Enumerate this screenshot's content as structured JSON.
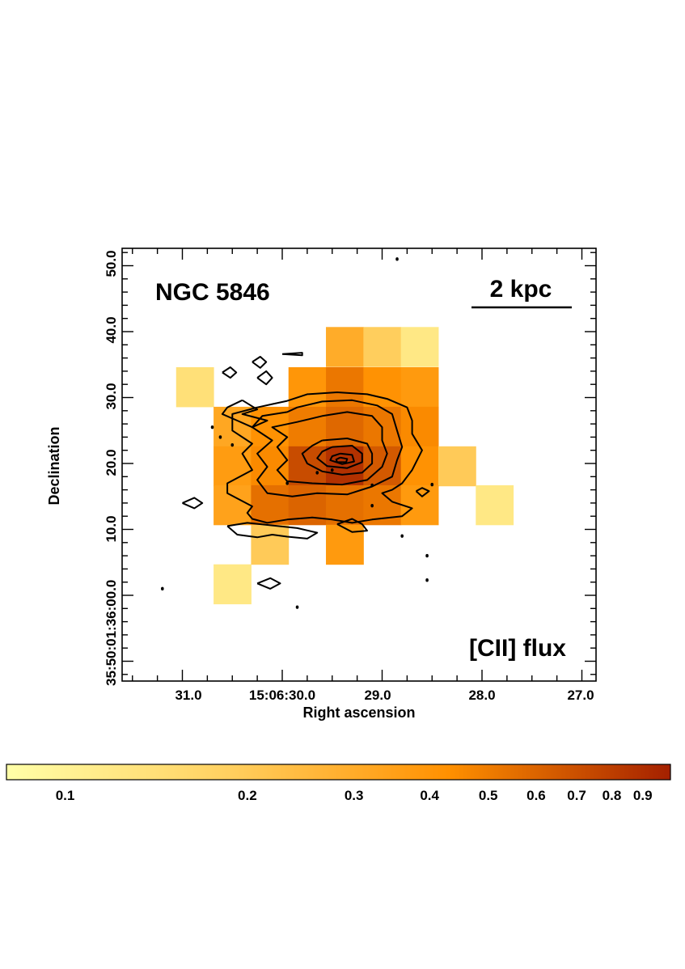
{
  "chart_data": {
    "type": "heatmap",
    "object_label": "NGC 5846",
    "map_label": "[CII] flux",
    "scale_bar_label": "2 kpc",
    "xlabel": "Right ascension",
    "ylabel": "Declination",
    "x_ticks": [
      {
        "label": "31.0",
        "value": 31.0
      },
      {
        "label": "15:06:30.0",
        "value": 30.0
      },
      {
        "label": "29.0",
        "value": 29.0
      },
      {
        "label": "28.0",
        "value": 28.0
      },
      {
        "label": "27.0",
        "value": 27.0
      }
    ],
    "y_ticks": [
      {
        "label": "35:50:01:36:00.0",
        "value": 0.0
      },
      {
        "label": "10.0",
        "value": 10.0
      },
      {
        "label": "20.0",
        "value": 20.0
      },
      {
        "label": "30.0",
        "value": 30.0
      },
      {
        "label": "40.0",
        "value": 40.0
      },
      {
        "label": "50.0",
        "value": 50.0
      }
    ],
    "colorbar": {
      "scale": "log",
      "range": [
        0.08,
        1.0
      ],
      "colors": [
        "#FFFFA8",
        "#FFD060",
        "#FF9000",
        "#A42000"
      ],
      "tick_labels": [
        "0.1",
        "0.2",
        "0.3",
        "0.4",
        "0.5",
        "0.6",
        "0.7",
        "0.8",
        "0.9"
      ],
      "tick_values": [
        0.1,
        0.2,
        0.3,
        0.4,
        0.5,
        0.6,
        0.7,
        0.8,
        0.9
      ]
    },
    "pixels": [
      {
        "ra": 29.375,
        "dec": 37.7,
        "value": 0.3
      },
      {
        "ra": 29.0,
        "dec": 37.7,
        "value": 0.19
      },
      {
        "ra": 28.625,
        "dec": 37.7,
        "value": 0.12
      },
      {
        "ra": 30.875,
        "dec": 31.6,
        "value": 0.14
      },
      {
        "ra": 29.75,
        "dec": 31.6,
        "value": 0.4
      },
      {
        "ra": 29.375,
        "dec": 31.6,
        "value": 0.52
      },
      {
        "ra": 29.0,
        "dec": 31.6,
        "value": 0.42
      },
      {
        "ra": 28.625,
        "dec": 31.6,
        "value": 0.38
      },
      {
        "ra": 30.5,
        "dec": 25.6,
        "value": 0.32
      },
      {
        "ra": 30.125,
        "dec": 25.6,
        "value": 0.42
      },
      {
        "ra": 29.75,
        "dec": 25.6,
        "value": 0.5
      },
      {
        "ra": 29.375,
        "dec": 25.6,
        "value": 0.58
      },
      {
        "ra": 29.0,
        "dec": 25.6,
        "value": 0.52
      },
      {
        "ra": 28.625,
        "dec": 25.6,
        "value": 0.45
      },
      {
        "ra": 30.5,
        "dec": 19.6,
        "value": 0.37
      },
      {
        "ra": 30.125,
        "dec": 19.6,
        "value": 0.45
      },
      {
        "ra": 29.75,
        "dec": 19.6,
        "value": 0.72
      },
      {
        "ra": 29.375,
        "dec": 19.6,
        "value": 0.88
      },
      {
        "ra": 29.0,
        "dec": 19.6,
        "value": 0.65
      },
      {
        "ra": 28.625,
        "dec": 19.6,
        "value": 0.42
      },
      {
        "ra": 28.25,
        "dec": 19.6,
        "value": 0.2
      },
      {
        "ra": 30.5,
        "dec": 13.7,
        "value": 0.34
      },
      {
        "ra": 30.125,
        "dec": 13.7,
        "value": 0.55
      },
      {
        "ra": 29.75,
        "dec": 13.7,
        "value": 0.6
      },
      {
        "ra": 29.375,
        "dec": 13.7,
        "value": 0.55
      },
      {
        "ra": 29.0,
        "dec": 13.7,
        "value": 0.52
      },
      {
        "ra": 28.625,
        "dec": 13.7,
        "value": 0.38
      },
      {
        "ra": 27.875,
        "dec": 13.7,
        "value": 0.12
      },
      {
        "ra": 30.125,
        "dec": 7.7,
        "value": 0.2
      },
      {
        "ra": 29.375,
        "dec": 7.7,
        "value": 0.38
      },
      {
        "ra": 30.5,
        "dec": 1.7,
        "value": 0.12
      }
    ],
    "contours": [
      {
        "level": 1,
        "points": [
          [
            29.95,
            29.5
          ],
          [
            29.75,
            30.5
          ],
          [
            29.45,
            30.8
          ],
          [
            29.15,
            30.5
          ],
          [
            28.95,
            29.8
          ],
          [
            28.75,
            28.5
          ],
          [
            28.7,
            26.5
          ],
          [
            28.7,
            24.5
          ],
          [
            28.6,
            22.0
          ],
          [
            28.7,
            19.0
          ],
          [
            28.8,
            17.0
          ],
          [
            28.9,
            16.0
          ],
          [
            29.0,
            15.5
          ],
          [
            28.9,
            14.2
          ],
          [
            28.7,
            13.2
          ],
          [
            28.8,
            12.0
          ],
          [
            29.1,
            11.5
          ],
          [
            29.3,
            11.0
          ],
          [
            29.5,
            11.5
          ],
          [
            29.7,
            11.8
          ],
          [
            29.95,
            11.5
          ],
          [
            30.15,
            11.0
          ],
          [
            30.3,
            11.6
          ],
          [
            30.35,
            12.5
          ],
          [
            30.3,
            13.5
          ],
          [
            30.55,
            15.5
          ],
          [
            30.55,
            17.0
          ],
          [
            30.3,
            19.0
          ],
          [
            30.4,
            21.5
          ],
          [
            30.3,
            23.0
          ],
          [
            30.5,
            25.0
          ],
          [
            30.5,
            27.5
          ],
          [
            30.25,
            28.5
          ],
          [
            30.1,
            29.0
          ],
          [
            29.95,
            29.5
          ]
        ]
      },
      {
        "level": 2,
        "points": [
          [
            29.85,
            28.5
          ],
          [
            29.6,
            29.4
          ],
          [
            29.3,
            29.6
          ],
          [
            29.05,
            28.8
          ],
          [
            28.9,
            27.5
          ],
          [
            28.85,
            25.0
          ],
          [
            28.8,
            22.5
          ],
          [
            28.85,
            20.5
          ],
          [
            28.9,
            18.0
          ],
          [
            29.1,
            16.5
          ],
          [
            29.35,
            15.3
          ],
          [
            29.65,
            15.5
          ],
          [
            29.9,
            15.0
          ],
          [
            30.15,
            15.5
          ],
          [
            30.25,
            17.5
          ],
          [
            30.15,
            19.5
          ],
          [
            30.25,
            21.5
          ],
          [
            30.1,
            23.5
          ],
          [
            30.3,
            25.5
          ],
          [
            30.2,
            27.2
          ],
          [
            29.95,
            27.8
          ],
          [
            29.85,
            28.5
          ]
        ]
      },
      {
        "level": 3,
        "points": [
          [
            29.6,
            27.2
          ],
          [
            29.35,
            27.8
          ],
          [
            29.1,
            27.2
          ],
          [
            29.0,
            25.5
          ],
          [
            29.0,
            23.5
          ],
          [
            28.95,
            21.5
          ],
          [
            29.0,
            19.5
          ],
          [
            29.15,
            17.5
          ],
          [
            29.4,
            16.8
          ],
          [
            29.7,
            17.0
          ],
          [
            29.95,
            17.3
          ],
          [
            30.05,
            19.0
          ],
          [
            29.95,
            20.5
          ],
          [
            30.05,
            22.5
          ],
          [
            29.95,
            24.0
          ],
          [
            30.1,
            25.5
          ],
          [
            29.85,
            26.3
          ],
          [
            29.6,
            27.2
          ]
        ]
      },
      {
        "level": 4,
        "points": [
          [
            29.6,
            23.5
          ],
          [
            29.35,
            23.8
          ],
          [
            29.15,
            23.0
          ],
          [
            29.1,
            21.5
          ],
          [
            29.1,
            20.0
          ],
          [
            29.2,
            18.6
          ],
          [
            29.4,
            18.3
          ],
          [
            29.6,
            18.8
          ],
          [
            29.75,
            20.0
          ],
          [
            29.8,
            21.5
          ],
          [
            29.7,
            22.7
          ],
          [
            29.6,
            23.5
          ]
        ]
      },
      {
        "level": 5,
        "points": [
          [
            29.5,
            22.5
          ],
          [
            29.3,
            22.7
          ],
          [
            29.2,
            21.5
          ],
          [
            29.2,
            20.2
          ],
          [
            29.35,
            19.3
          ],
          [
            29.55,
            19.6
          ],
          [
            29.65,
            20.8
          ],
          [
            29.6,
            21.8
          ],
          [
            29.5,
            22.5
          ]
        ]
      },
      {
        "level": 6,
        "points": [
          [
            29.42,
            21.5
          ],
          [
            29.3,
            21.3
          ],
          [
            29.28,
            20.3
          ],
          [
            29.4,
            19.9
          ],
          [
            29.52,
            20.5
          ],
          [
            29.5,
            21.1
          ],
          [
            29.42,
            21.5
          ]
        ]
      },
      {
        "level": 7,
        "points": [
          [
            29.42,
            20.9
          ],
          [
            29.35,
            20.7
          ],
          [
            29.36,
            20.2
          ],
          [
            29.45,
            20.2
          ],
          [
            29.46,
            20.6
          ],
          [
            29.42,
            20.9
          ]
        ]
      },
      {
        "level": 1,
        "points": [
          [
            30.55,
            10.5
          ],
          [
            30.45,
            9.2
          ],
          [
            30.25,
            8.8
          ],
          [
            30.1,
            9.2
          ],
          [
            29.95,
            8.9
          ],
          [
            29.75,
            8.6
          ],
          [
            29.65,
            9.5
          ],
          [
            29.85,
            10.2
          ],
          [
            30.1,
            10.6
          ],
          [
            30.35,
            11.0
          ],
          [
            30.55,
            10.5
          ]
        ]
      },
      {
        "level": 1,
        "points": [
          [
            29.45,
            10.8
          ],
          [
            29.3,
            9.6
          ],
          [
            29.15,
            9.8
          ],
          [
            29.2,
            10.8
          ],
          [
            29.3,
            11.6
          ],
          [
            29.45,
            10.8
          ]
        ]
      },
      {
        "level": 1,
        "points": [
          [
            30.4,
            29.6
          ],
          [
            30.25,
            28.2
          ],
          [
            30.4,
            27.5
          ],
          [
            30.15,
            26.5
          ],
          [
            30.3,
            25.5
          ],
          [
            30.45,
            26.5
          ],
          [
            30.6,
            27.5
          ],
          [
            30.55,
            28.5
          ],
          [
            30.4,
            29.6
          ]
        ]
      },
      {
        "level": 1,
        "points": [
          [
            30.25,
            1.8
          ],
          [
            30.12,
            1.0
          ],
          [
            30.02,
            1.8
          ],
          [
            30.12,
            2.6
          ],
          [
            30.25,
            1.8
          ]
        ]
      },
      {
        "level": 1,
        "points": [
          [
            31.0,
            14.0
          ],
          [
            30.88,
            13.2
          ],
          [
            30.8,
            14.0
          ],
          [
            30.88,
            14.8
          ],
          [
            31.0,
            14.0
          ]
        ]
      },
      {
        "level": 1,
        "points": [
          [
            30.6,
            33.8
          ],
          [
            30.52,
            33.0
          ],
          [
            30.46,
            33.8
          ],
          [
            30.52,
            34.6
          ],
          [
            30.6,
            33.8
          ]
        ]
      },
      {
        "level": 1,
        "points": [
          [
            30.3,
            35.4
          ],
          [
            30.22,
            34.5
          ],
          [
            30.16,
            35.4
          ],
          [
            30.22,
            36.2
          ],
          [
            30.3,
            35.4
          ]
        ]
      },
      {
        "level": 1,
        "points": [
          [
            30.25,
            33.0
          ],
          [
            30.16,
            32.0
          ],
          [
            30.1,
            33.0
          ],
          [
            30.16,
            34.0
          ],
          [
            30.25,
            33.0
          ]
        ]
      },
      {
        "level": 1,
        "points": [
          [
            30.0,
            36.6
          ],
          [
            29.8,
            36.4
          ],
          [
            29.8,
            36.8
          ],
          [
            30.0,
            36.6
          ]
        ]
      },
      {
        "level": 1,
        "points": [
          [
            28.66,
            15.8
          ],
          [
            28.6,
            15.0
          ],
          [
            28.53,
            15.8
          ],
          [
            28.6,
            16.3
          ],
          [
            28.66,
            15.8
          ]
        ]
      }
    ],
    "points": [
      {
        "ra": 28.85,
        "dec": 51.0
      },
      {
        "ra": 31.75,
        "dec": 20.5
      },
      {
        "ra": 31.2,
        "dec": 1.0
      },
      {
        "ra": 30.7,
        "dec": 25.5
      },
      {
        "ra": 30.62,
        "dec": 24.0
      },
      {
        "ra": 30.5,
        "dec": 22.8
      },
      {
        "ra": 29.95,
        "dec": 17.0
      },
      {
        "ra": 29.5,
        "dec": 19.0
      },
      {
        "ra": 29.1,
        "dec": 13.6
      },
      {
        "ra": 29.1,
        "dec": 16.7
      },
      {
        "ra": 29.85,
        "dec": -1.8
      },
      {
        "ra": 28.55,
        "dec": 6.0
      },
      {
        "ra": 28.55,
        "dec": 2.3
      },
      {
        "ra": 28.8,
        "dec": 9.0
      },
      {
        "ra": 28.5,
        "dec": 16.8
      },
      {
        "ra": 29.65,
        "dec": 18.6
      }
    ]
  }
}
